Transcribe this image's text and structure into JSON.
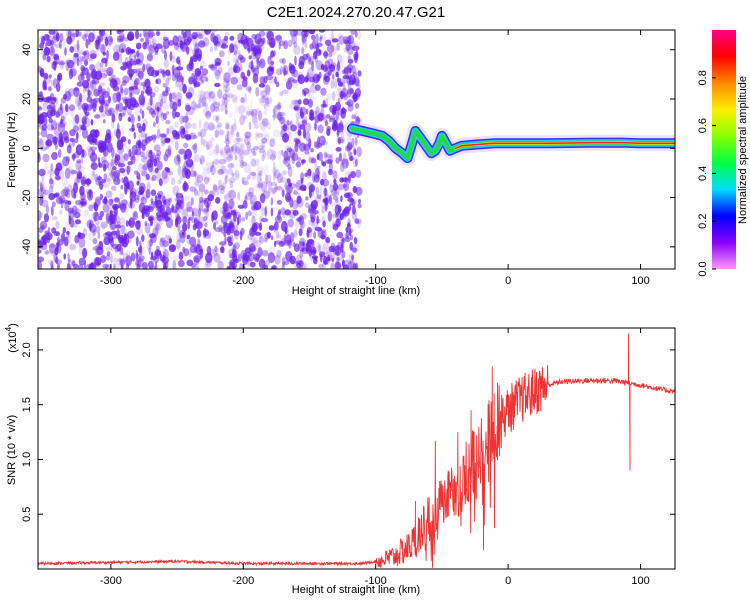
{
  "page": {
    "title": "C2E1.2024.270.20.47.G21"
  },
  "colors": {
    "spectrogram_point": "#6a1fe8",
    "ridge_outer": "#14d4f0",
    "ridge_inner": "#2bd640",
    "ridge_core": "#ff1f1f",
    "snr_line": "#ee3333",
    "frame": "#000000"
  },
  "chart_data": [
    {
      "type": "heatmap",
      "title": "C2E1.2024.270.20.47.G21",
      "xlabel": "Height of straight line (km)",
      "ylabel": "Frequency (Hz)",
      "xlim": [
        -355,
        126
      ],
      "ylim": [
        -49,
        48
      ],
      "x_ticks": [
        -300,
        -200,
        -100,
        0,
        100
      ],
      "y_ticks": [
        -40,
        -20,
        0,
        20,
        40
      ],
      "noise_region": {
        "x": [
          -355,
          -112
        ],
        "y": [
          -49,
          48
        ]
      },
      "signal_ridge": [
        {
          "x": -118,
          "y": 8
        },
        {
          "x": -110,
          "y": 7
        },
        {
          "x": -102,
          "y": 6
        },
        {
          "x": -95,
          "y": 5
        },
        {
          "x": -90,
          "y": 3
        },
        {
          "x": -85,
          "y": 0
        },
        {
          "x": -80,
          "y": -2
        },
        {
          "x": -76,
          "y": -4
        },
        {
          "x": -72,
          "y": 3
        },
        {
          "x": -70,
          "y": 7
        },
        {
          "x": -66,
          "y": 4
        },
        {
          "x": -62,
          "y": 1
        },
        {
          "x": -58,
          "y": -2
        },
        {
          "x": -55,
          "y": -1
        },
        {
          "x": -52,
          "y": 2
        },
        {
          "x": -50,
          "y": 5
        },
        {
          "x": -47,
          "y": 2
        },
        {
          "x": -44,
          "y": -1
        },
        {
          "x": -40,
          "y": 0
        },
        {
          "x": -35,
          "y": 1
        },
        {
          "x": -25,
          "y": 1.5
        },
        {
          "x": -10,
          "y": 2
        },
        {
          "x": 0,
          "y": 2
        },
        {
          "x": 30,
          "y": 2
        },
        {
          "x": 60,
          "y": 2.2
        },
        {
          "x": 85,
          "y": 2.3
        },
        {
          "x": 100,
          "y": 2
        },
        {
          "x": 126,
          "y": 2
        }
      ],
      "colorbar": {
        "label": "Normalized spectral amplitude",
        "range": [
          0,
          1
        ],
        "ticks": [
          0.0,
          0.2,
          0.4,
          0.6,
          0.8
        ],
        "tick_labels": [
          "0.0",
          "0.2",
          "0.4",
          "0.6",
          "0.8"
        ],
        "colors": [
          "#ff99ff",
          "#8800ff",
          "#0000ff",
          "#00ddff",
          "#00ff44",
          "#88ff00",
          "#ffee00",
          "#ff8800",
          "#ff0000",
          "#ff0088"
        ]
      }
    },
    {
      "type": "line",
      "xlabel": "Height of straight line (km)",
      "ylabel": "SNR (10 * v/v)",
      "scale_label": "(x10",
      "scale_exp": "4",
      "scale_close": ")",
      "xlim": [
        -355,
        126
      ],
      "ylim": [
        0,
        2.2
      ],
      "x_ticks": [
        -300,
        -200,
        -100,
        0,
        100
      ],
      "y_ticks": [
        0.5,
        1.0,
        1.5,
        2.0
      ],
      "y_tick_labels": [
        "0.5",
        "1.0",
        "1.5",
        "2.0"
      ],
      "series": [
        {
          "values_profile": [
            [
              -355,
              0.05
            ],
            [
              -300,
              0.06
            ],
            [
              -250,
              0.07
            ],
            [
              -200,
              0.05
            ],
            [
              -150,
              0.05
            ],
            [
              -110,
              0.05
            ],
            [
              -95,
              0.08
            ],
            [
              -85,
              0.12
            ],
            [
              -75,
              0.2
            ],
            [
              -68,
              0.3
            ],
            [
              -60,
              0.5
            ],
            [
              -50,
              0.6
            ],
            [
              -40,
              0.7
            ],
            [
              -30,
              0.9
            ],
            [
              -20,
              1.1
            ],
            [
              -10,
              1.3
            ],
            [
              0,
              1.45
            ],
            [
              10,
              1.55
            ],
            [
              20,
              1.62
            ],
            [
              30,
              1.68
            ],
            [
              40,
              1.71
            ],
            [
              60,
              1.72
            ],
            [
              80,
              1.72
            ],
            [
              90,
              1.7
            ],
            [
              100,
              1.68
            ],
            [
              115,
              1.64
            ],
            [
              126,
              1.62
            ]
          ],
          "spikes": [
            {
              "x": -70,
              "y": 0.62
            },
            {
              "x": -55,
              "y": 1.17
            },
            {
              "x": -38,
              "y": 1.25
            },
            {
              "x": -28,
              "y": 1.45
            },
            {
              "x": -12,
              "y": 1.85
            },
            {
              "x": -8,
              "y": 1.7
            },
            {
              "x": 91,
              "y": 2.15
            },
            {
              "x": 92,
              "y": 0.9
            }
          ]
        }
      ]
    }
  ]
}
